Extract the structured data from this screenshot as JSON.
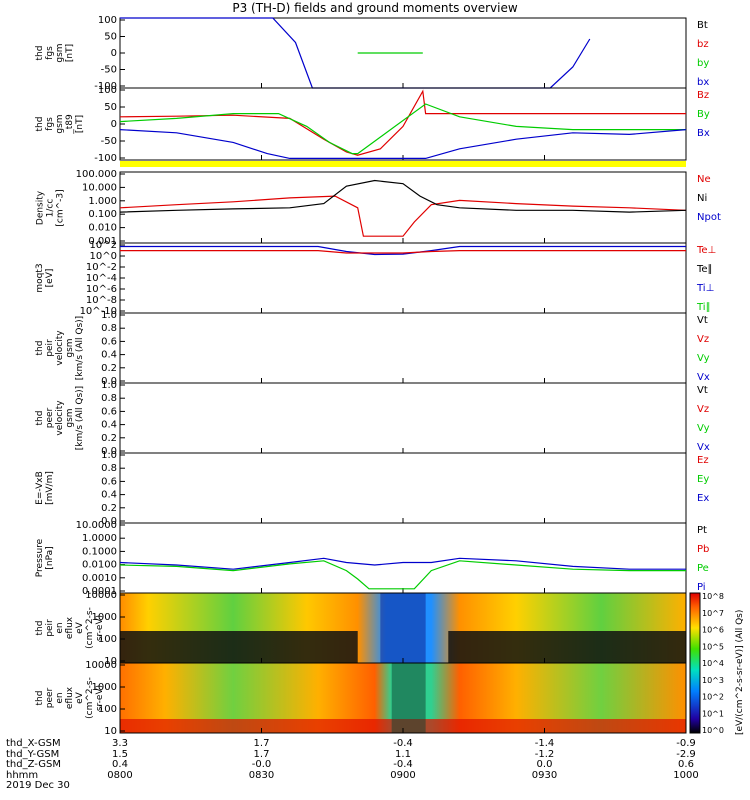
{
  "title": "P3 (TH-D) fields and ground moments overview",
  "colors": {
    "black": "#000000",
    "red": "#e00000",
    "green": "#00cc00",
    "blue": "#0000cc",
    "yellow": "#ffff00"
  },
  "time_axis": {
    "ticks": [
      "0800",
      "0830",
      "0900",
      "0930",
      "1000"
    ],
    "range": [
      "0800",
      "1000"
    ],
    "date": "2019 Dec 30"
  },
  "ephemeris": {
    "rows": [
      {
        "label": "thd_X-GSM",
        "values": [
          "3.3",
          "1.7",
          "-0.4",
          "-1.4",
          "-0.9"
        ]
      },
      {
        "label": "thd_Y-GSM",
        "values": [
          "1.5",
          "1.7",
          "1.1",
          "-1.2",
          "-2.9"
        ]
      },
      {
        "label": "thd_Z-GSM",
        "values": [
          "0.4",
          "-0.0",
          "-0.4",
          "0.0",
          "0.6"
        ]
      },
      {
        "label": "hhmm",
        "values": [
          "0800",
          "0830",
          "0900",
          "0930",
          "1000"
        ]
      }
    ]
  },
  "chart_data": [
    {
      "type": "line",
      "ylabel": "thd\nfgs\ngsm\n[nT]",
      "ylim": [
        -100,
        100
      ],
      "yticks": [
        "100",
        "50",
        "0",
        "-50",
        "-100"
      ],
      "legend": [
        {
          "name": "Bt",
          "color": "#000000"
        },
        {
          "name": "bz",
          "color": "#e00000"
        },
        {
          "name": "by",
          "color": "#00cc00"
        },
        {
          "name": "bx",
          "color": "#0000cc"
        }
      ],
      "series": [
        {
          "name": "bx",
          "x": [
            0.0,
            0.27,
            0.31,
            0.34,
            0.5,
            0.66,
            0.76,
            0.8,
            0.83
          ],
          "y": [
            100,
            100,
            30,
            -100,
            -100,
            -100,
            -100,
            -40,
            40
          ]
        },
        {
          "name": "by",
          "x": [
            0.42,
            0.535
          ],
          "y": [
            0,
            0
          ]
        }
      ]
    },
    {
      "type": "line",
      "ylabel": "thd\nfgs\ngsm\n_t89\n[nT]",
      "ylim": [
        -125,
        100
      ],
      "yticks": [
        "100",
        "50",
        "0",
        "-50",
        "-100"
      ],
      "legend": [
        {
          "name": "Bz",
          "color": "#e00000"
        },
        {
          "name": "By",
          "color": "#00cc00"
        },
        {
          "name": "Bx",
          "color": "#0000cc"
        }
      ],
      "series": [
        {
          "name": "Bz",
          "x": [
            0.0,
            0.1,
            0.2,
            0.3,
            0.36,
            0.4,
            0.42,
            0.46,
            0.5,
            0.535,
            0.54,
            0.6,
            0.7,
            0.8,
            0.9,
            1.0
          ],
          "y": [
            10,
            12,
            15,
            5,
            -60,
            -100,
            -110,
            -90,
            -20,
            90,
            20,
            20,
            20,
            20,
            20,
            20
          ]
        },
        {
          "name": "By",
          "x": [
            0.0,
            0.1,
            0.2,
            0.28,
            0.33,
            0.37,
            0.41,
            0.42,
            0.54,
            0.6,
            0.7,
            0.8,
            0.9,
            1.0
          ],
          "y": [
            -5,
            5,
            20,
            20,
            -20,
            -70,
            -105,
            -105,
            50,
            10,
            -20,
            -30,
            -30,
            -30
          ]
        },
        {
          "name": "Bx",
          "x": [
            0.0,
            0.1,
            0.2,
            0.26,
            0.3,
            0.42,
            0.54,
            0.6,
            0.7,
            0.8,
            0.9,
            1.0
          ],
          "y": [
            -30,
            -40,
            -70,
            -105,
            -120,
            -120,
            -120,
            -90,
            -60,
            -40,
            -45,
            -30
          ]
        }
      ]
    },
    {
      "type": "line",
      "ylabel": "Density\n1/cc\n[cm^-3]",
      "scale": "log",
      "ylim": [
        0.001,
        100
      ],
      "yticks": [
        "100.000",
        "10.000",
        "1.000",
        "0.100",
        "0.010",
        "0.001"
      ],
      "legend": [
        {
          "name": "Ne",
          "color": "#e00000"
        },
        {
          "name": "Ni",
          "color": "#000000"
        },
        {
          "name": "Npot",
          "color": "#0000cc"
        }
      ],
      "series": [
        {
          "name": "Ne",
          "x": [
            0.0,
            0.1,
            0.2,
            0.3,
            0.38,
            0.42,
            0.43,
            0.5,
            0.52,
            0.55,
            0.6,
            0.7,
            0.8,
            0.9,
            1.0
          ],
          "y": [
            0.3,
            0.5,
            0.8,
            1.5,
            2.0,
            0.3,
            0.003,
            0.003,
            0.03,
            0.5,
            1.0,
            0.6,
            0.4,
            0.3,
            0.2
          ]
        },
        {
          "name": "Ni",
          "x": [
            0.0,
            0.1,
            0.2,
            0.3,
            0.36,
            0.4,
            0.45,
            0.5,
            0.53,
            0.56,
            0.6,
            0.7,
            0.8,
            0.9,
            1.0
          ],
          "y": [
            0.15,
            0.2,
            0.25,
            0.3,
            0.6,
            10,
            25,
            15,
            2,
            0.5,
            0.3,
            0.2,
            0.2,
            0.15,
            0.2
          ]
        }
      ]
    },
    {
      "type": "line",
      "ylabel": "moqt3\n[eV]",
      "scale": "log",
      "ylim": [
        1e-10,
        10000.0
      ],
      "yticks": [
        "10^2",
        "10^0",
        "10^-2",
        "10^-4",
        "10^-6",
        "10^-8",
        "10^-10"
      ],
      "legend": [
        {
          "name": "Te⊥",
          "color": "#e00000"
        },
        {
          "name": "Te∥",
          "color": "#000000"
        },
        {
          "name": "Ti⊥",
          "color": "#0000cc"
        },
        {
          "name": "Ti∥",
          "color": "#00cc00"
        }
      ],
      "series": [
        {
          "name": "Ti⊥",
          "x": [
            0.0,
            0.35,
            0.4,
            0.45,
            0.5,
            0.55,
            0.6,
            1.0
          ],
          "y": [
            2000,
            2000,
            200,
            50,
            60,
            300,
            2000,
            2000
          ]
        },
        {
          "name": "Te⊥",
          "x": [
            0.0,
            0.35,
            0.4,
            0.5,
            0.55,
            0.6,
            1.0
          ],
          "y": [
            300,
            300,
            100,
            100,
            200,
            300,
            300
          ]
        }
      ]
    },
    {
      "type": "line",
      "ylabel": "thd\npeir\nvelocity\ngsm\n[km/s (All Qs)]",
      "ylim": [
        0.0,
        1.0
      ],
      "yticks": [
        "1.0",
        "0.8",
        "0.6",
        "0.4",
        "0.2",
        "0.0"
      ],
      "legend": [
        {
          "name": "Vt",
          "color": "#000000"
        },
        {
          "name": "Vz",
          "color": "#e00000"
        },
        {
          "name": "Vy",
          "color": "#00cc00"
        },
        {
          "name": "Vx",
          "color": "#0000cc"
        }
      ],
      "series": []
    },
    {
      "type": "line",
      "ylabel": "thd\npeer\nvelocity\ngsm\n[km/s (All Qs)]",
      "ylim": [
        0.0,
        1.0
      ],
      "yticks": [
        "1.0",
        "0.8",
        "0.6",
        "0.4",
        "0.2",
        "0.0"
      ],
      "legend": [
        {
          "name": "Vt",
          "color": "#000000"
        },
        {
          "name": "Vz",
          "color": "#e00000"
        },
        {
          "name": "Vy",
          "color": "#00cc00"
        },
        {
          "name": "Vx",
          "color": "#0000cc"
        }
      ],
      "series": []
    },
    {
      "type": "line",
      "ylabel": "E=-VxB\n[mV/m]",
      "ylim": [
        0.0,
        1.0
      ],
      "yticks": [
        "1.0",
        "0.8",
        "0.6",
        "0.4",
        "0.2",
        "0.0"
      ],
      "legend": [
        {
          "name": "Ez",
          "color": "#e00000"
        },
        {
          "name": "Ey",
          "color": "#00cc00"
        },
        {
          "name": "Ex",
          "color": "#0000cc"
        }
      ],
      "series": []
    },
    {
      "type": "line",
      "ylabel": "Pressure\n[nPa]",
      "scale": "log",
      "ylim": [
        0.0001,
        10
      ],
      "yticks": [
        "10.0000",
        "1.0000",
        "0.1000",
        "0.0100",
        "0.0010",
        "0.0001"
      ],
      "legend": [
        {
          "name": "Pt",
          "color": "#000000"
        },
        {
          "name": "Pb",
          "color": "#e00000"
        },
        {
          "name": "Pe",
          "color": "#00cc00"
        },
        {
          "name": "Pi",
          "color": "#0000cc"
        }
      ],
      "series": [
        {
          "name": "Pi",
          "x": [
            0.0,
            0.1,
            0.2,
            0.3,
            0.36,
            0.4,
            0.45,
            0.5,
            0.55,
            0.6,
            0.7,
            0.8,
            0.9,
            1.0
          ],
          "y": [
            0.015,
            0.01,
            0.005,
            0.015,
            0.03,
            0.015,
            0.01,
            0.015,
            0.015,
            0.03,
            0.02,
            0.008,
            0.005,
            0.005
          ]
        },
        {
          "name": "Pe",
          "x": [
            0.0,
            0.1,
            0.2,
            0.3,
            0.36,
            0.4,
            0.42,
            0.44,
            0.52,
            0.55,
            0.6,
            0.7,
            0.8,
            0.9,
            1.0
          ],
          "y": [
            0.01,
            0.008,
            0.004,
            0.012,
            0.02,
            0.004,
            0.001,
            0.0002,
            0.0002,
            0.004,
            0.02,
            0.01,
            0.005,
            0.004,
            0.004
          ]
        }
      ]
    },
    {
      "type": "heatmap",
      "ylabel": "thd\npeir\nen\neflux\neV\n(cm^2-s-\nsr-eV)",
      "scale": "log",
      "ylim": [
        10,
        30000
      ],
      "yticks": [
        "10000",
        "1000",
        "100",
        "10"
      ]
    },
    {
      "type": "heatmap",
      "ylabel": "thd\npeer\nen\neflux\neV\n(cm^2-s-\nsr-eV)",
      "scale": "log",
      "ylim": [
        10,
        30000
      ],
      "yticks": [
        "10000",
        "1000",
        "100",
        "10"
      ]
    }
  ],
  "colorbar": {
    "ticks": [
      "10^8",
      "10^7",
      "10^6",
      "10^5",
      "10^4",
      "10^3",
      "10^2",
      "10^1",
      "10^0"
    ],
    "title": "[eV/(cm^2-s-sr-eV)] (All Qs)"
  }
}
